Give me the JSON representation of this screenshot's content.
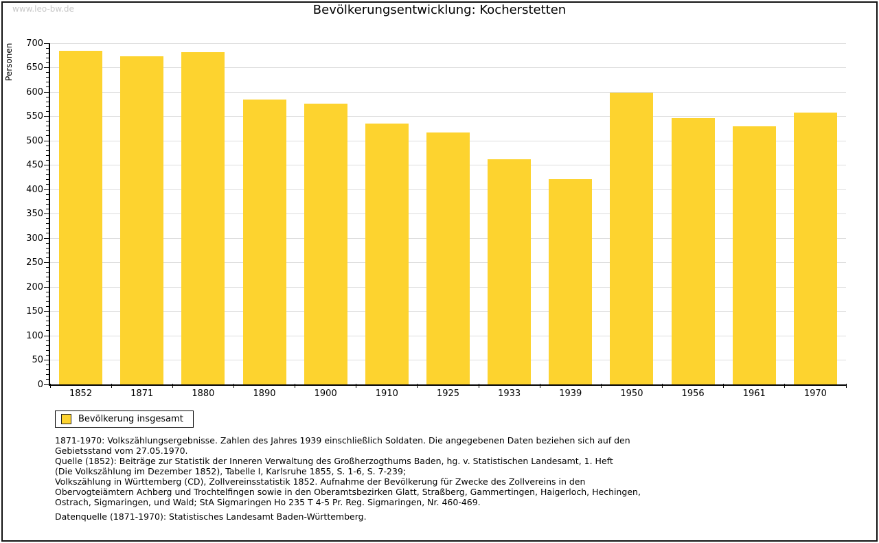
{
  "watermark": "www.leo-bw.de",
  "title": "Bevölkerungsentwicklung: Kocherstetten",
  "chart_data": {
    "type": "bar",
    "title": "Bevölkerungsentwicklung: Kocherstetten",
    "ylabel": "Personen",
    "xlabel": "",
    "categories": [
      "1852",
      "1871",
      "1880",
      "1890",
      "1900",
      "1910",
      "1925",
      "1933",
      "1939",
      "1950",
      "1956",
      "1961",
      "1970"
    ],
    "values": [
      685,
      673,
      682,
      584,
      576,
      535,
      517,
      462,
      421,
      598,
      547,
      530,
      558
    ],
    "ylim": [
      0,
      700
    ],
    "ytick_step": 50,
    "yminor_step": 10,
    "grid": true,
    "legend_entries": [
      "Bevölkerung insgesamt"
    ],
    "legend_position": "bottom-left",
    "bar_color": "#FDD32F"
  },
  "legend": {
    "label": "Bevölkerung insgesamt"
  },
  "colors": {
    "bar": "#FDD32F",
    "grid": "#DCDCDC",
    "axis": "#000000",
    "watermark": "#C8C8C8",
    "frame": "#111111"
  },
  "footnotes": {
    "lines": [
      "1871-1970: Volkszählungsergebnisse. Zahlen des Jahres 1939 einschließlich Soldaten. Die angegebenen Daten beziehen sich auf den",
      "Gebietsstand vom 27.05.1970.",
      "Quelle (1852): Beiträge zur Statistik der Inneren Verwaltung des Großherzogthums Baden, hg. v. Statistischen Landesamt, 1. Heft",
      "(Die Volkszählung im Dezember 1852), Tabelle I, Karlsruhe 1855, S. 1-6, S. 7-239;",
      "Volkszählung in Württemberg (CD), Zollvereinsstatistik 1852. Aufnahme der Bevölkerung für Zwecke des Zollvereins in den",
      "Obervogteiämtern Achberg und Trochtelfingen sowie in den Oberamtsbezirken Glatt, Straßberg, Gammertingen, Haigerloch, Hechingen,",
      "Ostrach, Sigmaringen, und Wald; StA Sigmaringen Ho 235 T 4-5 Pr. Reg. Sigmaringen, Nr. 460-469."
    ],
    "datasource": "Datenquelle (1871-1970): Statistisches Landesamt Baden-Württemberg."
  }
}
